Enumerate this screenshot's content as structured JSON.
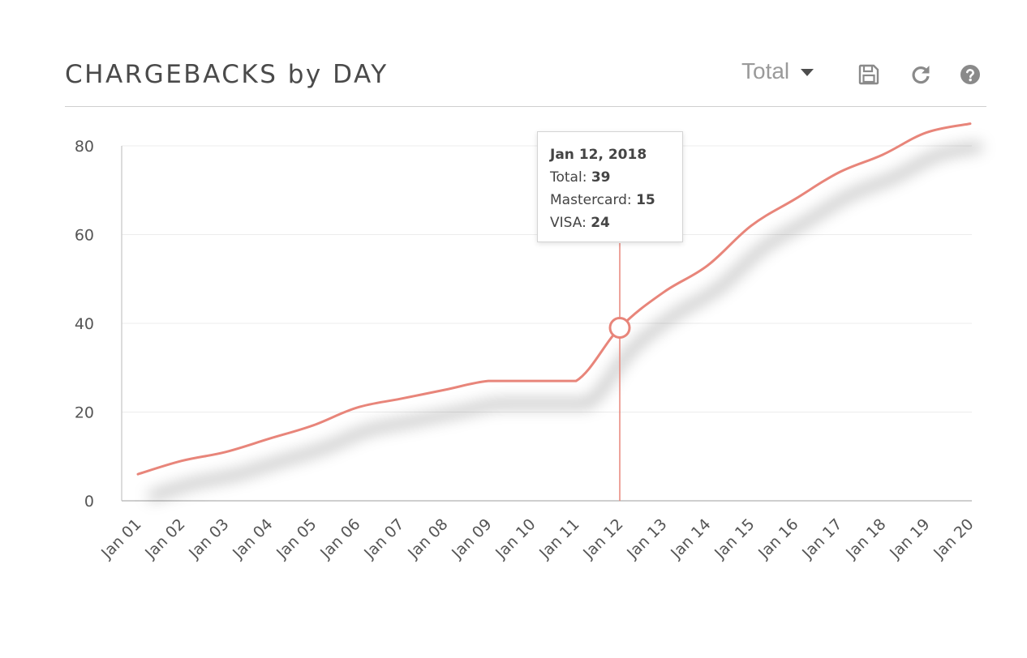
{
  "header": {
    "title": "CHARGEBACKS by DAY",
    "select_value": "Total",
    "icons": [
      "save-icon",
      "refresh-icon",
      "help-icon"
    ]
  },
  "tooltip": {
    "date": "Jan 12, 2018",
    "rows": [
      {
        "label": "Total: ",
        "value": "39"
      },
      {
        "label": "Mastercard: ",
        "value": "15"
      },
      {
        "label": "VISA: ",
        "value": "24"
      }
    ]
  },
  "chart_data": {
    "type": "line",
    "title": "CHARGEBACKS by DAY",
    "xlabel": "",
    "ylabel": "",
    "categories": [
      "Jan 01",
      "Jan 02",
      "Jan 03",
      "Jan 04",
      "Jan 05",
      "Jan 06",
      "Jan 07",
      "Jan 08",
      "Jan 09",
      "Jan 10",
      "Jan 11",
      "Jan 12",
      "Jan 13",
      "Jan 14",
      "Jan 15",
      "Jan 16",
      "Jan 17",
      "Jan 18",
      "Jan 19",
      "Jan 20"
    ],
    "series": [
      {
        "name": "Total",
        "color": "#e8857a",
        "values": [
          6,
          9,
          11,
          14,
          17,
          21,
          23,
          25,
          27,
          27,
          27,
          39,
          47,
          53,
          62,
          68,
          74,
          78,
          83,
          85
        ]
      }
    ],
    "highlighted_index": 11,
    "ylim": [
      0,
      80
    ],
    "yticks": [
      0,
      20,
      40,
      60,
      80
    ],
    "grid": true,
    "line_color": "#e8857a"
  }
}
